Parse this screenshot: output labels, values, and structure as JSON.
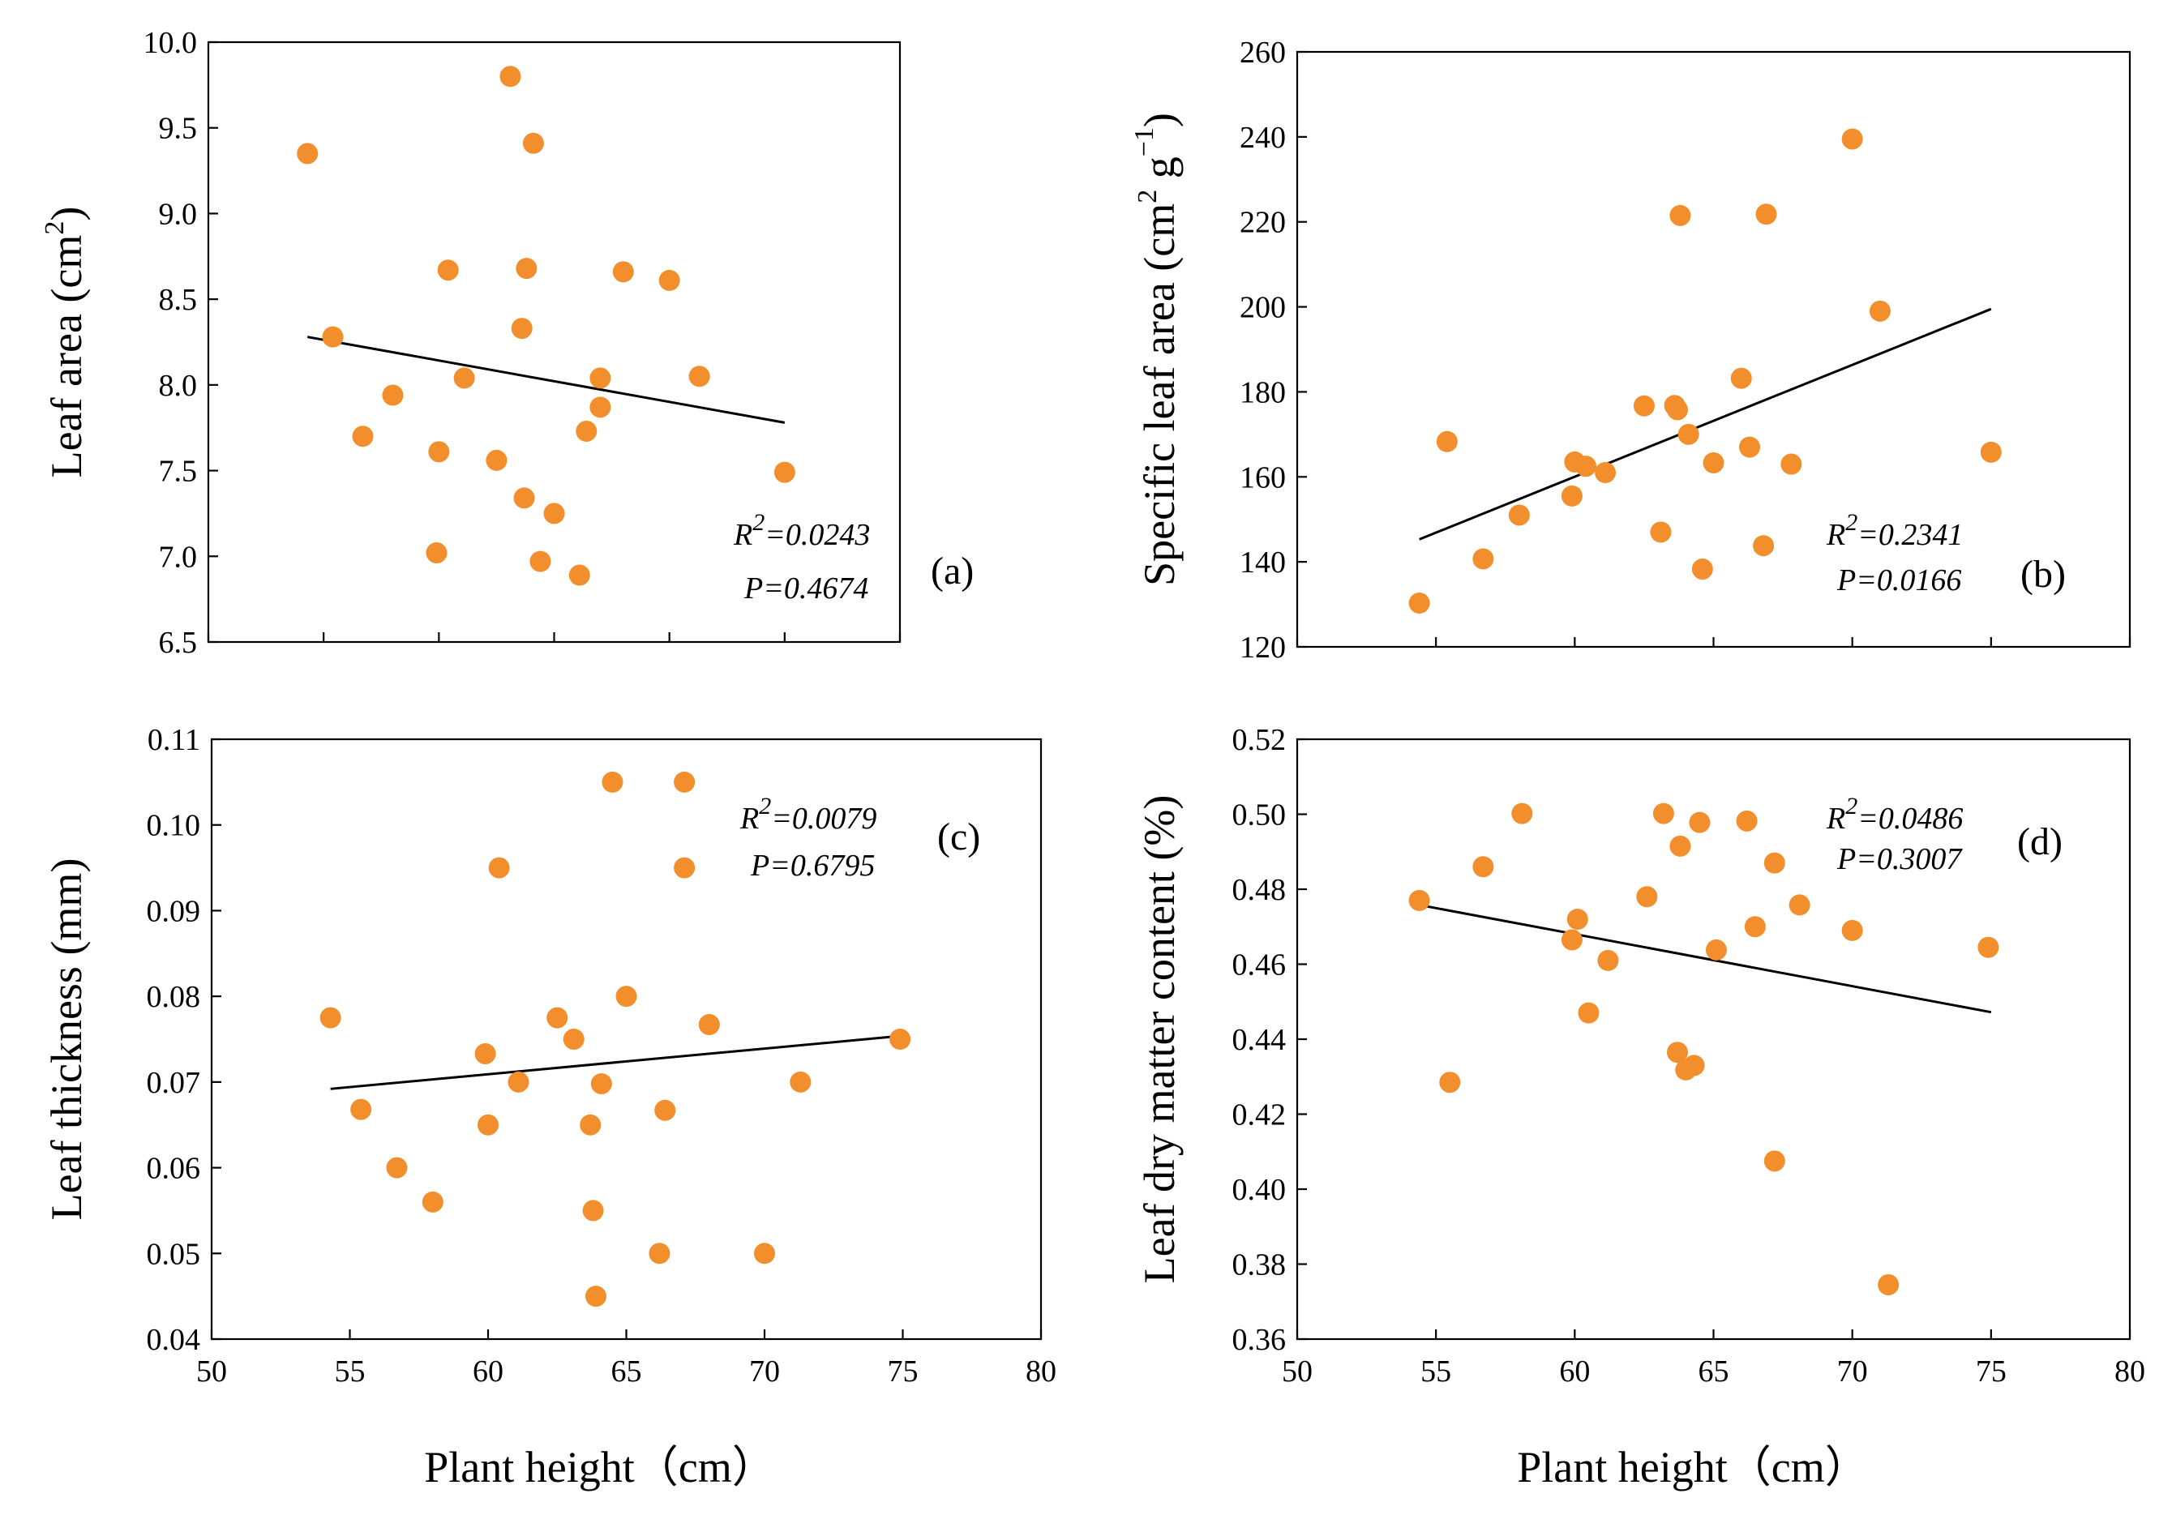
{
  "colors": {
    "point": "#F28E2B",
    "line": "#000000",
    "axis": "#000000"
  },
  "chart_data": [
    {
      "id": "a",
      "type": "scatter",
      "panel_label": "(a)",
      "ylabel_main": "Leaf area (cm",
      "ylabel_sup": "2",
      "ylabel_end": ")",
      "xlabel": "",
      "xlim": [
        50,
        80
      ],
      "xticks": [],
      "ylim": [
        6.5,
        10.0
      ],
      "yticks": [
        "6.5",
        "7.0",
        "7.5",
        "8.0",
        "8.5",
        "9.0",
        "9.5",
        "10.0"
      ],
      "r2_text": "=0.0243",
      "p_text": "P=0.4674",
      "fit": {
        "x": [
          54.3,
          75.0
        ],
        "y": [
          8.28,
          7.78
        ]
      },
      "points": [
        {
          "x": 54.3,
          "y": 9.35
        },
        {
          "x": 55.4,
          "y": 8.28
        },
        {
          "x": 56.7,
          "y": 7.7
        },
        {
          "x": 58.0,
          "y": 7.94
        },
        {
          "x": 59.9,
          "y": 7.02
        },
        {
          "x": 60.0,
          "y": 7.61
        },
        {
          "x": 60.4,
          "y": 8.67
        },
        {
          "x": 61.1,
          "y": 8.04
        },
        {
          "x": 62.5,
          "y": 7.56
        },
        {
          "x": 63.1,
          "y": 9.8
        },
        {
          "x": 63.6,
          "y": 8.33
        },
        {
          "x": 63.7,
          "y": 7.34
        },
        {
          "x": 63.8,
          "y": 8.68
        },
        {
          "x": 64.1,
          "y": 9.41
        },
        {
          "x": 64.4,
          "y": 6.97
        },
        {
          "x": 65.0,
          "y": 7.25
        },
        {
          "x": 66.1,
          "y": 6.89
        },
        {
          "x": 66.4,
          "y": 7.73
        },
        {
          "x": 67.0,
          "y": 8.04
        },
        {
          "x": 67.0,
          "y": 7.87
        },
        {
          "x": 68.0,
          "y": 8.66
        },
        {
          "x": 70.0,
          "y": 8.61
        },
        {
          "x": 71.3,
          "y": 8.05
        },
        {
          "x": 75.0,
          "y": 7.49
        }
      ]
    },
    {
      "id": "b",
      "type": "scatter",
      "panel_label": "(b)",
      "ylabel_main": "Specific leaf area (cm",
      "ylabel_sup": "2",
      "ylabel_mid": " g",
      "ylabel_sup2": "−1",
      "ylabel_end": ")",
      "xlabel": "",
      "xlim": [
        50,
        80
      ],
      "xticks": [],
      "ylim": [
        120,
        260
      ],
      "yticks": [
        "120",
        "140",
        "160",
        "180",
        "200",
        "220",
        "240",
        "260"
      ],
      "r2_text": "=0.2341",
      "p_text": "P=0.0166",
      "fit": {
        "x": [
          54.4,
          75.0
        ],
        "y": [
          145.3,
          199.5
        ]
      },
      "points": [
        {
          "x": 54.4,
          "y": 130.3
        },
        {
          "x": 55.4,
          "y": 168.3
        },
        {
          "x": 56.7,
          "y": 140.7
        },
        {
          "x": 58.0,
          "y": 151.0
        },
        {
          "x": 59.9,
          "y": 155.5
        },
        {
          "x": 60.0,
          "y": 163.5
        },
        {
          "x": 60.4,
          "y": 162.5
        },
        {
          "x": 61.1,
          "y": 161.0
        },
        {
          "x": 62.5,
          "y": 176.7
        },
        {
          "x": 63.1,
          "y": 147.0
        },
        {
          "x": 63.6,
          "y": 176.8
        },
        {
          "x": 63.7,
          "y": 175.8
        },
        {
          "x": 63.8,
          "y": 221.5
        },
        {
          "x": 64.1,
          "y": 170.0
        },
        {
          "x": 64.6,
          "y": 138.3
        },
        {
          "x": 65.0,
          "y": 163.3
        },
        {
          "x": 66.0,
          "y": 183.2
        },
        {
          "x": 66.3,
          "y": 167.0
        },
        {
          "x": 66.8,
          "y": 143.8
        },
        {
          "x": 66.9,
          "y": 221.8
        },
        {
          "x": 67.8,
          "y": 163.0
        },
        {
          "x": 70.0,
          "y": 239.5
        },
        {
          "x": 71.0,
          "y": 199.0
        },
        {
          "x": 75.0,
          "y": 165.8
        }
      ]
    },
    {
      "id": "c",
      "type": "scatter",
      "panel_label": "(c)",
      "ylabel_main": "Leaf thickness (mm)",
      "xlabel": "Plant height（cm）",
      "xlim": [
        50,
        80
      ],
      "xticks": [
        "50",
        "55",
        "60",
        "65",
        "70",
        "75",
        "80"
      ],
      "ylim": [
        0.04,
        0.11
      ],
      "yticks": [
        "0.04",
        "0.05",
        "0.06",
        "0.07",
        "0.08",
        "0.09",
        "0.10",
        "0.11"
      ],
      "r2_text": "=0.0079",
      "p_text": "P=0.6795",
      "fit": {
        "x": [
          54.3,
          75.0
        ],
        "y": [
          0.0692,
          0.0754
        ]
      },
      "points": [
        {
          "x": 54.3,
          "y": 0.0775
        },
        {
          "x": 55.4,
          "y": 0.0668
        },
        {
          "x": 56.7,
          "y": 0.06
        },
        {
          "x": 58.0,
          "y": 0.056
        },
        {
          "x": 59.9,
          "y": 0.0733
        },
        {
          "x": 60.0,
          "y": 0.065
        },
        {
          "x": 60.4,
          "y": 0.095
        },
        {
          "x": 61.1,
          "y": 0.07
        },
        {
          "x": 62.5,
          "y": 0.0775
        },
        {
          "x": 63.1,
          "y": 0.075
        },
        {
          "x": 63.7,
          "y": 0.065
        },
        {
          "x": 63.8,
          "y": 0.055
        },
        {
          "x": 63.9,
          "y": 0.045
        },
        {
          "x": 64.1,
          "y": 0.0698
        },
        {
          "x": 64.5,
          "y": 0.105
        },
        {
          "x": 65.0,
          "y": 0.08
        },
        {
          "x": 66.2,
          "y": 0.05
        },
        {
          "x": 66.4,
          "y": 0.0667
        },
        {
          "x": 67.1,
          "y": 0.105
        },
        {
          "x": 67.1,
          "y": 0.095
        },
        {
          "x": 68.0,
          "y": 0.0767
        },
        {
          "x": 70.0,
          "y": 0.05
        },
        {
          "x": 71.3,
          "y": 0.07
        },
        {
          "x": 74.9,
          "y": 0.075
        }
      ]
    },
    {
      "id": "d",
      "type": "scatter",
      "panel_label": "(d)",
      "ylabel_main": "Leaf dry matter content (%)",
      "xlabel": "Plant height（cm）",
      "xlim": [
        50,
        80
      ],
      "xticks": [
        "50",
        "55",
        "60",
        "65",
        "70",
        "75",
        "80"
      ],
      "ylim": [
        0.36,
        0.52
      ],
      "yticks": [
        "0.36",
        "0.38",
        "0.40",
        "0.42",
        "0.44",
        "0.46",
        "0.48",
        "0.50",
        "0.52"
      ],
      "r2_text": "=0.0486",
      "p_text": "P=0.3007",
      "fit": {
        "x": [
          54.4,
          75.0
        ],
        "y": [
          0.4758,
          0.4472
        ]
      },
      "points": [
        {
          "x": 54.4,
          "y": 0.477
        },
        {
          "x": 55.5,
          "y": 0.4285
        },
        {
          "x": 56.7,
          "y": 0.486
        },
        {
          "x": 58.1,
          "y": 0.5002
        },
        {
          "x": 59.9,
          "y": 0.4665
        },
        {
          "x": 60.1,
          "y": 0.472
        },
        {
          "x": 60.5,
          "y": 0.447
        },
        {
          "x": 61.2,
          "y": 0.461
        },
        {
          "x": 62.6,
          "y": 0.478
        },
        {
          "x": 63.2,
          "y": 0.5002
        },
        {
          "x": 63.7,
          "y": 0.4365
        },
        {
          "x": 63.8,
          "y": 0.4915
        },
        {
          "x": 64.0,
          "y": 0.4318
        },
        {
          "x": 64.3,
          "y": 0.433
        },
        {
          "x": 64.5,
          "y": 0.4978
        },
        {
          "x": 65.1,
          "y": 0.4638
        },
        {
          "x": 66.2,
          "y": 0.4982
        },
        {
          "x": 66.5,
          "y": 0.47
        },
        {
          "x": 67.2,
          "y": 0.487
        },
        {
          "x": 67.2,
          "y": 0.4075
        },
        {
          "x": 68.1,
          "y": 0.4758
        },
        {
          "x": 70.0,
          "y": 0.469
        },
        {
          "x": 71.3,
          "y": 0.3745
        },
        {
          "x": 74.9,
          "y": 0.4645
        }
      ]
    }
  ]
}
